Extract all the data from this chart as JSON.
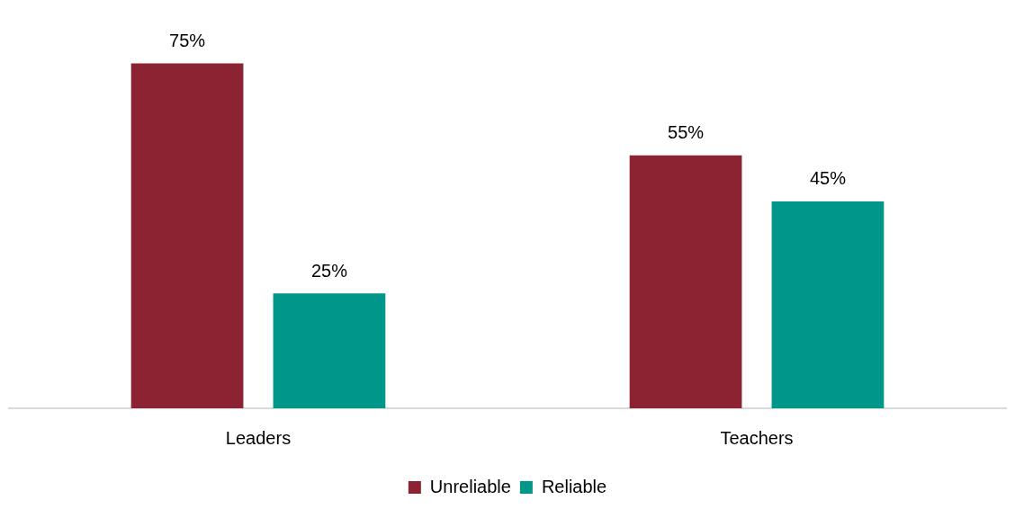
{
  "chart_data": {
    "type": "bar",
    "categories": [
      "Leaders",
      "Teachers"
    ],
    "series": [
      {
        "name": "Unreliable",
        "color": "#8b2332",
        "values": [
          75,
          55
        ],
        "value_labels": [
          "75%",
          "55%"
        ]
      },
      {
        "name": "Reliable",
        "color": "#00968a",
        "values": [
          25,
          45
        ],
        "value_labels": [
          "25%",
          "45%"
        ]
      }
    ],
    "legend": "bottom",
    "grid": false,
    "tick_labels": "x"
  }
}
